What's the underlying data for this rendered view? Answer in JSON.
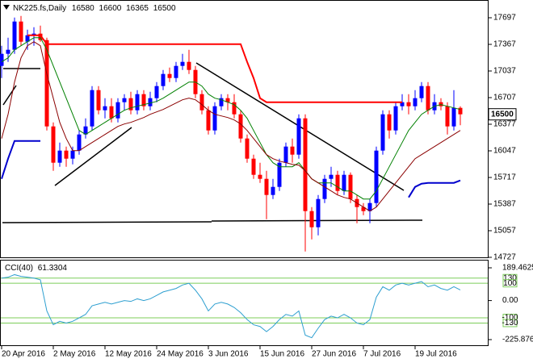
{
  "chart_data": [
    {
      "type": "candlestick",
      "title": "NK225.fs,Daily",
      "categories": [
        "20 Apr 2016",
        null,
        null,
        null,
        null,
        null,
        null,
        null,
        "2 May 2016",
        null,
        null,
        null,
        null,
        null,
        null,
        null,
        "12 May 2016",
        null,
        null,
        null,
        null,
        null,
        null,
        null,
        "24 May 2016",
        null,
        null,
        null,
        null,
        null,
        null,
        null,
        "3 Jun 2016",
        null,
        null,
        null,
        null,
        null,
        null,
        null,
        "15 Jun 2016",
        null,
        null,
        null,
        null,
        null,
        null,
        null,
        "27 Jun 2016",
        null,
        null,
        null,
        null,
        null,
        null,
        null,
        "7 Jul 2016",
        null,
        null,
        null,
        null,
        null,
        null,
        null,
        "19 Jul 2016",
        null,
        null,
        null,
        null,
        null,
        null,
        null
      ],
      "open": [
        17100,
        17250,
        17300,
        17650,
        17400,
        17480,
        17500,
        17420,
        16350,
        15900,
        16050,
        15950,
        16050,
        16250,
        16350,
        16800,
        16550,
        16600,
        16450,
        16650,
        16700,
        16550,
        16750,
        16600,
        16700,
        16850,
        17000,
        16950,
        17100,
        17150,
        17050,
        16750,
        16550,
        16300,
        16600,
        16700,
        16650,
        16500,
        16200,
        15950,
        15750,
        15700,
        15500,
        15600,
        15900,
        16100,
        16000,
        16450,
        15300,
        15100,
        15450,
        15700,
        15750,
        15550,
        15750,
        15450,
        15350,
        15300,
        15400,
        16050,
        16500,
        16300,
        16600,
        16650,
        16600,
        16700,
        16850,
        16550,
        16650,
        16600,
        16350,
        16580
      ],
      "high": [
        17350,
        17450,
        17700,
        17720,
        17550,
        17580,
        17600,
        17450,
        16400,
        16150,
        16100,
        16100,
        16300,
        16450,
        16850,
        16850,
        16700,
        16700,
        16700,
        16750,
        16780,
        16800,
        16800,
        16780,
        16900,
        17050,
        17080,
        17150,
        17250,
        17300,
        17100,
        16800,
        16600,
        16650,
        16750,
        16750,
        16750,
        16550,
        16250,
        16000,
        15900,
        15800,
        15700,
        15950,
        16150,
        16200,
        16500,
        16500,
        15350,
        15500,
        15750,
        15850,
        15800,
        15800,
        15780,
        15500,
        15400,
        15450,
        16100,
        16550,
        16550,
        16650,
        16750,
        16750,
        16800,
        16900,
        16900,
        16750,
        16700,
        16650,
        16800,
        16600
      ],
      "low": [
        16950,
        17150,
        17250,
        17350,
        17300,
        17350,
        17400,
        16300,
        15800,
        15850,
        15850,
        15880,
        16000,
        16200,
        16300,
        16500,
        16450,
        16400,
        16400,
        16550,
        16500,
        16500,
        16550,
        16550,
        16650,
        16800,
        16900,
        16900,
        17050,
        17000,
        16700,
        16500,
        16250,
        16250,
        16550,
        16550,
        16450,
        16150,
        15900,
        15700,
        15650,
        15200,
        15450,
        15550,
        15850,
        15900,
        15950,
        14800,
        14950,
        15000,
        15400,
        15600,
        15500,
        15500,
        15400,
        15150,
        15250,
        15150,
        15350,
        16000,
        16200,
        16250,
        16550,
        16500,
        16550,
        16650,
        16500,
        16500,
        16550,
        16250,
        16300,
        16365
      ],
      "close": [
        17250,
        17300,
        17650,
        17400,
        17480,
        17500,
        17420,
        16350,
        15900,
        16050,
        15950,
        16050,
        16250,
        16350,
        16800,
        16550,
        16600,
        16450,
        16650,
        16700,
        16550,
        16750,
        16600,
        16700,
        16850,
        17000,
        16950,
        17100,
        17150,
        17050,
        16750,
        16550,
        16300,
        16600,
        16700,
        16650,
        16500,
        16200,
        15950,
        15750,
        15700,
        15500,
        15600,
        15900,
        16100,
        16000,
        16450,
        15300,
        15100,
        15450,
        15700,
        15750,
        15550,
        15750,
        15450,
        15350,
        15300,
        15400,
        16050,
        16500,
        16300,
        16600,
        16650,
        16600,
        16700,
        16850,
        16550,
        16650,
        16600,
        16350,
        16580,
        16500
      ],
      "up_color": "#0000ff",
      "down_color": "#ff0000",
      "series": [
        {
          "color": "#008000",
          "values": [
            17150,
            17200,
            17300,
            17350,
            17400,
            17450,
            17450,
            17300,
            17100,
            16900,
            16700,
            16500,
            16300,
            16250,
            16300,
            16350,
            16400,
            16450,
            16500,
            16550,
            16580,
            16600,
            16620,
            16640,
            16660,
            16700,
            16750,
            16800,
            16850,
            16900,
            16900,
            16850,
            16750,
            16700,
            16680,
            16650,
            16620,
            16550,
            16450,
            16300,
            16150,
            16000,
            15900,
            15850,
            15850,
            15850,
            15900,
            15800,
            15700,
            15650,
            15650,
            15650,
            15600,
            15550,
            15550,
            15500,
            15450,
            15450,
            15550,
            15700,
            15850,
            16000,
            16150,
            16300,
            16400,
            16500,
            16550,
            16600,
            16620,
            16600,
            16580,
            16560
          ]
        },
        {
          "color": "#8b0000",
          "values": [
            16200,
            16500,
            16900,
            17200,
            17350,
            17400,
            17350,
            17000,
            16700,
            16400,
            16200,
            16050,
            16050,
            16100,
            16150,
            16200,
            16250,
            16300,
            16350,
            16380,
            16400,
            16430,
            16460,
            16500,
            16530,
            16560,
            16600,
            16640,
            16680,
            16700,
            16680,
            16620,
            16550,
            16500,
            16480,
            16460,
            16430,
            16380,
            16300,
            16200,
            16100,
            16000,
            15950,
            15920,
            15900,
            15880,
            15870,
            15800,
            15700,
            15650,
            15600,
            15550,
            15500,
            15470,
            15450,
            15400,
            15350,
            15300,
            15350,
            15450,
            15550,
            15650,
            15750,
            15850,
            15950,
            16000,
            16050,
            16100,
            16150,
            16200,
            16250,
            16300
          ]
        },
        {
          "color": "#ff0000",
          "values": [
            null,
            null,
            null,
            null,
            17480,
            17480,
            17480,
            17370,
            17370,
            17370,
            17370,
            17370,
            17370,
            17370,
            17370,
            17370,
            17370,
            17370,
            17370,
            17370,
            17370,
            17370,
            17370,
            17370,
            17370,
            17370,
            17370,
            17370,
            17370,
            17370,
            17370,
            17370,
            17370,
            17370,
            17370,
            17370,
            17370,
            17370,
            17150,
            16950,
            16700,
            16650,
            16650,
            16650,
            16650,
            16650,
            16650,
            16650,
            16650,
            16650,
            16650,
            16650,
            16650,
            16650,
            16650,
            16650,
            16650,
            16650,
            16650,
            16650,
            16650,
            16650,
            16650,
            null,
            null,
            null,
            null,
            null,
            null,
            null,
            null,
            null
          ]
        },
        {
          "color": "#0000cd",
          "values": [
            15700,
            15950,
            16170,
            16170,
            16170,
            16170,
            16170,
            null,
            null,
            null,
            null,
            null,
            null,
            null,
            null,
            null,
            null,
            null,
            null,
            null,
            null,
            null,
            null,
            null,
            null,
            null,
            null,
            null,
            null,
            null,
            null,
            null,
            null,
            null,
            null,
            null,
            null,
            null,
            null,
            null,
            null,
            null,
            null,
            null,
            null,
            null,
            null,
            null,
            null,
            null,
            null,
            null,
            null,
            null,
            null,
            null,
            null,
            null,
            null,
            null,
            null,
            null,
            null,
            15470,
            15600,
            15640,
            15650,
            15650,
            15650,
            15650,
            15650,
            15680
          ]
        }
      ],
      "ylim": [
        14707,
        17917
      ],
      "yticks": [
        17697,
        17367,
        17037,
        16707,
        16377,
        16047,
        15717,
        15387,
        15057,
        14727
      ]
    },
    {
      "type": "line",
      "title": "CCI(40)",
      "color": "#2e9fd0",
      "values": [
        130,
        135,
        150,
        140,
        135,
        130,
        120,
        -60,
        -140,
        -120,
        -130,
        -120,
        -100,
        -80,
        -30,
        -20,
        -10,
        -20,
        -10,
        0,
        -5,
        10,
        0,
        10,
        30,
        50,
        60,
        70,
        90,
        100,
        60,
        10,
        -60,
        -20,
        -10,
        -20,
        -40,
        -70,
        -110,
        -140,
        -150,
        -180,
        -150,
        -110,
        -80,
        -90,
        -60,
        -200,
        -215,
        -160,
        -110,
        -90,
        -100,
        -80,
        -100,
        -130,
        -140,
        -110,
        20,
        80,
        60,
        90,
        100,
        90,
        100,
        110,
        80,
        90,
        70,
        60,
        80,
        61.3304
      ],
      "levels": [
        130,
        100,
        -100,
        -130
      ],
      "level_color": "#7ccd5a",
      "ylim": [
        -225.8766,
        189.4625
      ],
      "yticks": [
        189.4625,
        {
          "value": 0,
          "label": "0.00"
        },
        -225.8766
      ]
    }
  ]
}
